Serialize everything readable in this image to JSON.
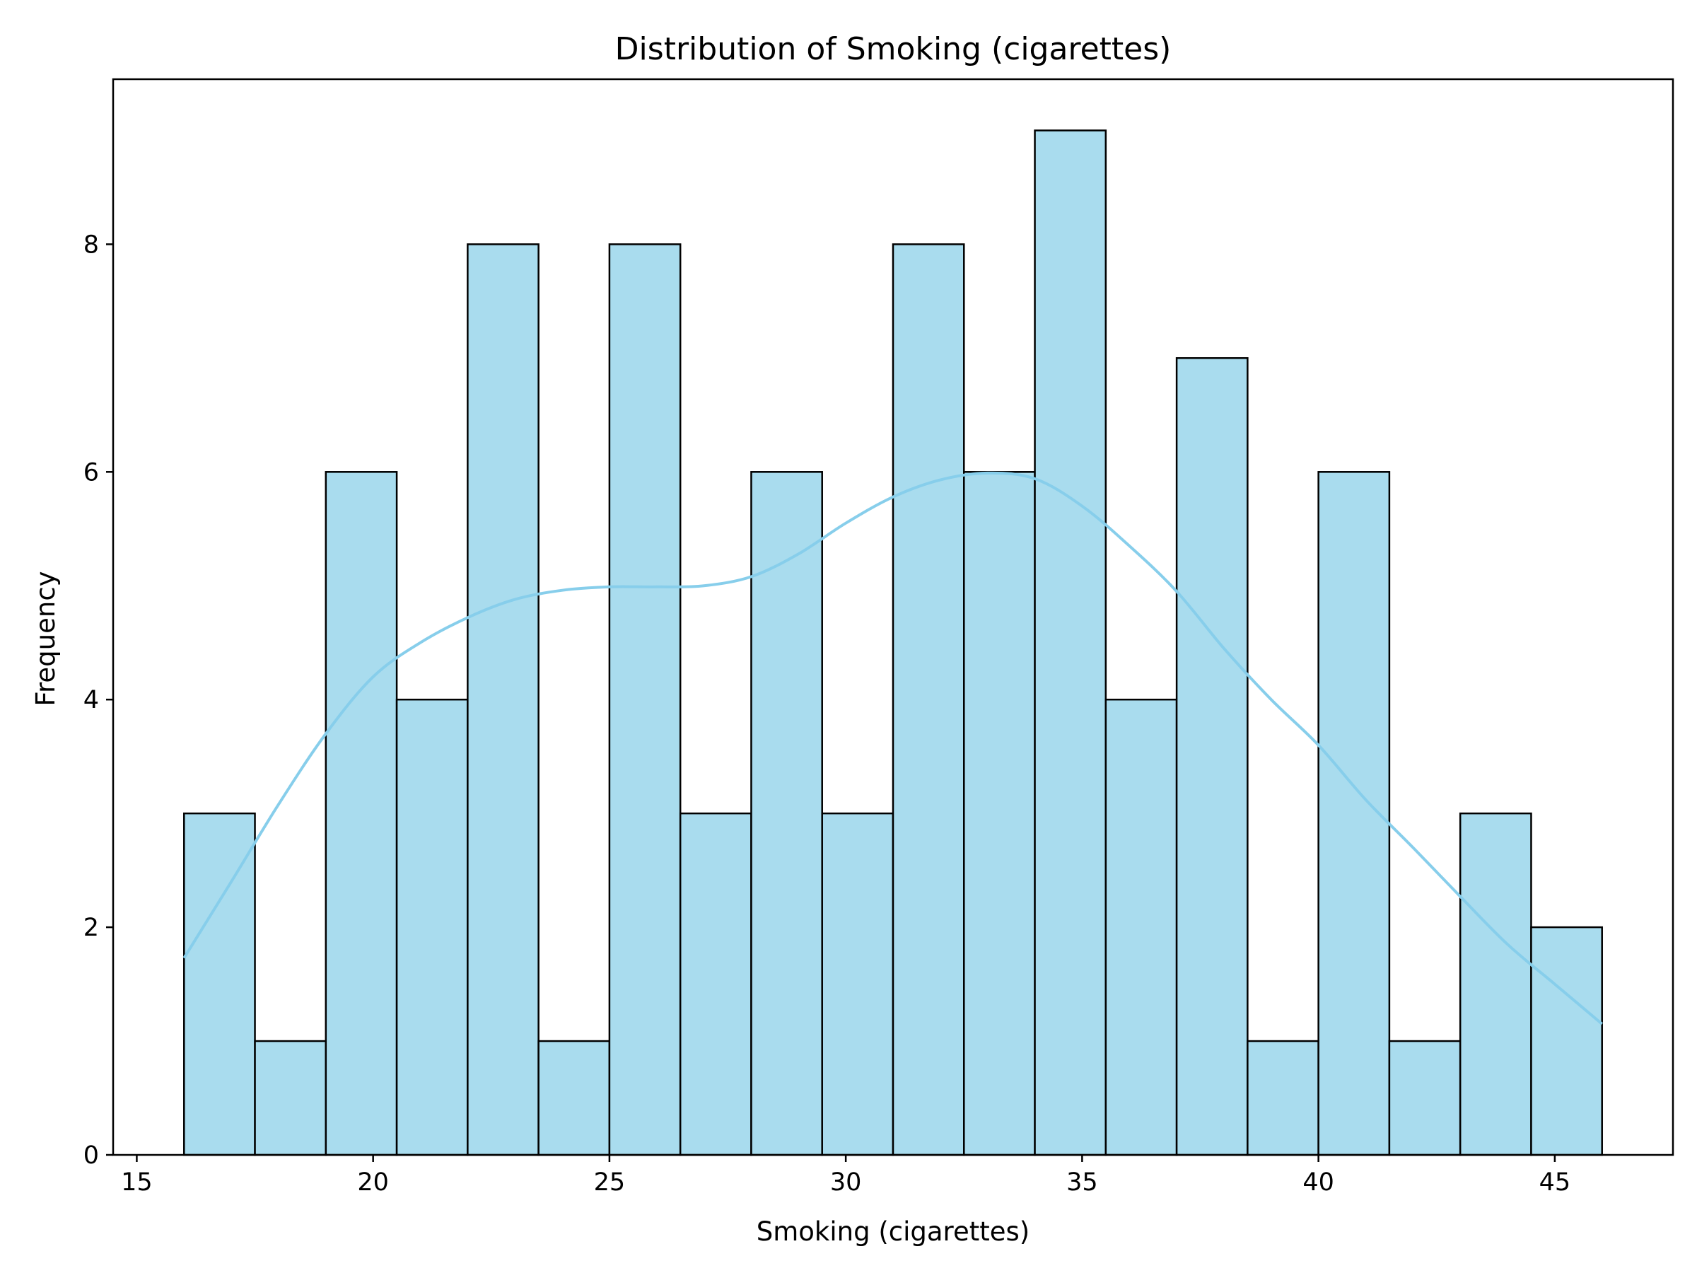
{
  "chart_data": {
    "type": "bar",
    "title": "Distribution of Smoking (cigarettes)",
    "xlabel": "Smoking (cigarettes)",
    "ylabel": "Frequency",
    "xlim": [
      14.5,
      47.5
    ],
    "ylim": [
      0,
      9.45
    ],
    "xticks": [
      15,
      20,
      25,
      30,
      35,
      40,
      45
    ],
    "yticks": [
      0,
      2,
      4,
      6,
      8
    ],
    "grid": false,
    "bins": [
      {
        "x0": 16.0,
        "x1": 17.5,
        "count": 3
      },
      {
        "x0": 17.5,
        "x1": 19.0,
        "count": 1
      },
      {
        "x0": 19.0,
        "x1": 20.5,
        "count": 6
      },
      {
        "x0": 20.5,
        "x1": 22.0,
        "count": 4
      },
      {
        "x0": 22.0,
        "x1": 23.5,
        "count": 8
      },
      {
        "x0": 23.5,
        "x1": 25.0,
        "count": 1
      },
      {
        "x0": 25.0,
        "x1": 26.5,
        "count": 8
      },
      {
        "x0": 26.5,
        "x1": 28.0,
        "count": 3
      },
      {
        "x0": 28.0,
        "x1": 29.5,
        "count": 6
      },
      {
        "x0": 29.5,
        "x1": 31.0,
        "count": 3
      },
      {
        "x0": 31.0,
        "x1": 32.5,
        "count": 8
      },
      {
        "x0": 32.5,
        "x1": 34.0,
        "count": 6
      },
      {
        "x0": 34.0,
        "x1": 35.5,
        "count": 9
      },
      {
        "x0": 35.5,
        "x1": 37.0,
        "count": 4
      },
      {
        "x0": 37.0,
        "x1": 38.5,
        "count": 7
      },
      {
        "x0": 38.5,
        "x1": 40.0,
        "count": 1
      },
      {
        "x0": 40.0,
        "x1": 41.5,
        "count": 6
      },
      {
        "x0": 41.5,
        "x1": 43.0,
        "count": 1
      },
      {
        "x0": 43.0,
        "x1": 44.5,
        "count": 3
      },
      {
        "x0": 44.5,
        "x1": 46.0,
        "count": 2
      }
    ],
    "kde": {
      "x": [
        16,
        17,
        18,
        19,
        20,
        21,
        22,
        23,
        24,
        25,
        26,
        27,
        28,
        29,
        30,
        31,
        32,
        33,
        34,
        35,
        36,
        37,
        38,
        39,
        40,
        41,
        42,
        43,
        44,
        45,
        46
      ],
      "y": [
        1.73,
        2.4,
        3.08,
        3.7,
        4.2,
        4.5,
        4.72,
        4.88,
        4.96,
        4.99,
        4.99,
        5.0,
        5.08,
        5.28,
        5.55,
        5.78,
        5.93,
        5.99,
        5.94,
        5.7,
        5.35,
        4.95,
        4.45,
        4.0,
        3.6,
        3.12,
        2.7,
        2.27,
        1.85,
        1.5,
        1.15
      ]
    },
    "colors": {
      "bar_fill": "#a9dcee",
      "bar_edge": "#000000",
      "kde_line": "#87ceeb"
    }
  }
}
